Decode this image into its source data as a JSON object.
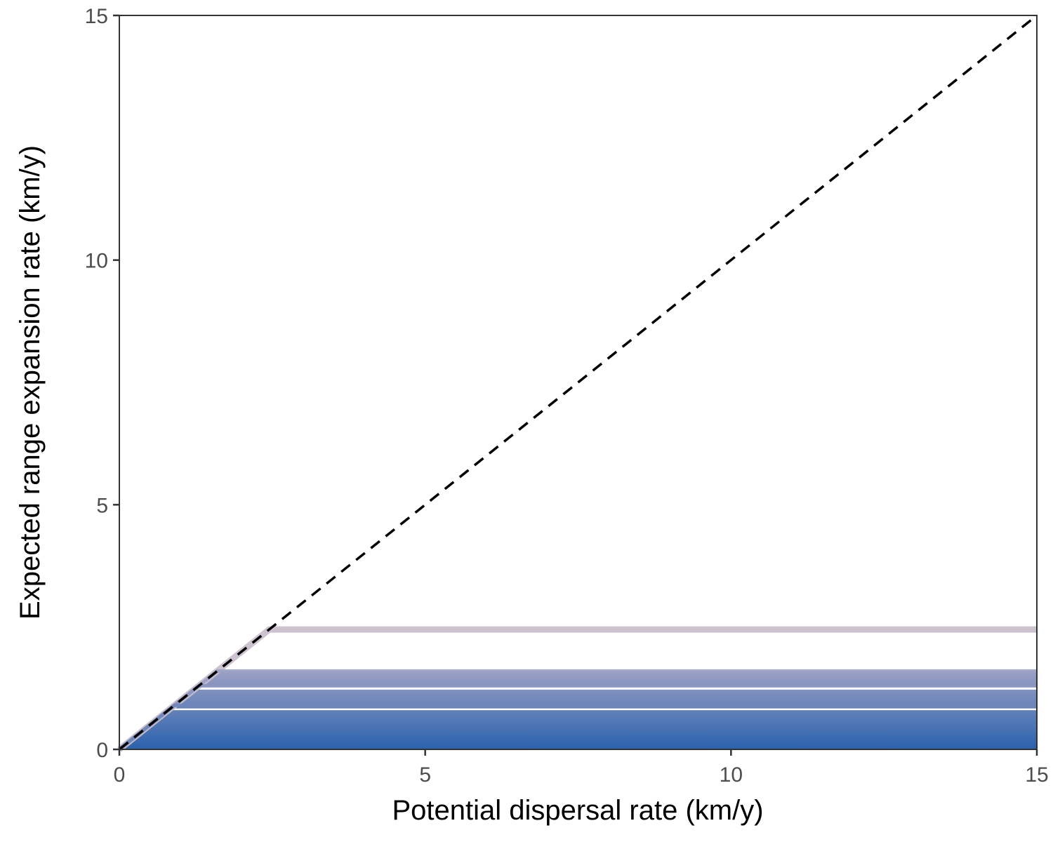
{
  "chart_data": {
    "type": "line",
    "title": "",
    "xlabel": "Potential dispersal rate (km/y)",
    "ylabel": "Expected range expansion rate (km/y)",
    "xlim": [
      0,
      15
    ],
    "ylim": [
      0,
      15
    ],
    "x_ticks": [
      "0",
      "5",
      "10",
      "15"
    ],
    "y_ticks": [
      "0",
      "5",
      "10",
      "15"
    ],
    "grid": false,
    "legend": "none",
    "reference_line": {
      "name": "1:1 line",
      "style": "dashed",
      "color": "#000000",
      "x": [
        0,
        15
      ],
      "y": [
        0,
        15
      ]
    },
    "band": {
      "description": "stacked saturating curves y = min(x, cap)",
      "cap_min": 0,
      "cap_max": 1.6,
      "color_low": "#2a62ad",
      "color_high": "#9aa0c4"
    },
    "series": [
      {
        "x": [
          0,
          2.45,
          15
        ],
        "y": [
          0,
          2.45,
          2.45
        ],
        "color": "#c9bfcd"
      },
      {
        "x": [
          0,
          1.6,
          15
        ],
        "y": [
          0,
          1.6,
          1.6
        ],
        "color": "#9aa0c4"
      },
      {
        "x": [
          0,
          1.3,
          15
        ],
        "y": [
          0,
          1.3,
          1.3
        ],
        "color": "#8a96c0"
      },
      {
        "x": [
          0,
          0.9,
          15
        ],
        "y": [
          0,
          0.9,
          0.9
        ],
        "color": "#6f86ba"
      }
    ],
    "gaps": [
      1.25,
      0.82
    ]
  }
}
